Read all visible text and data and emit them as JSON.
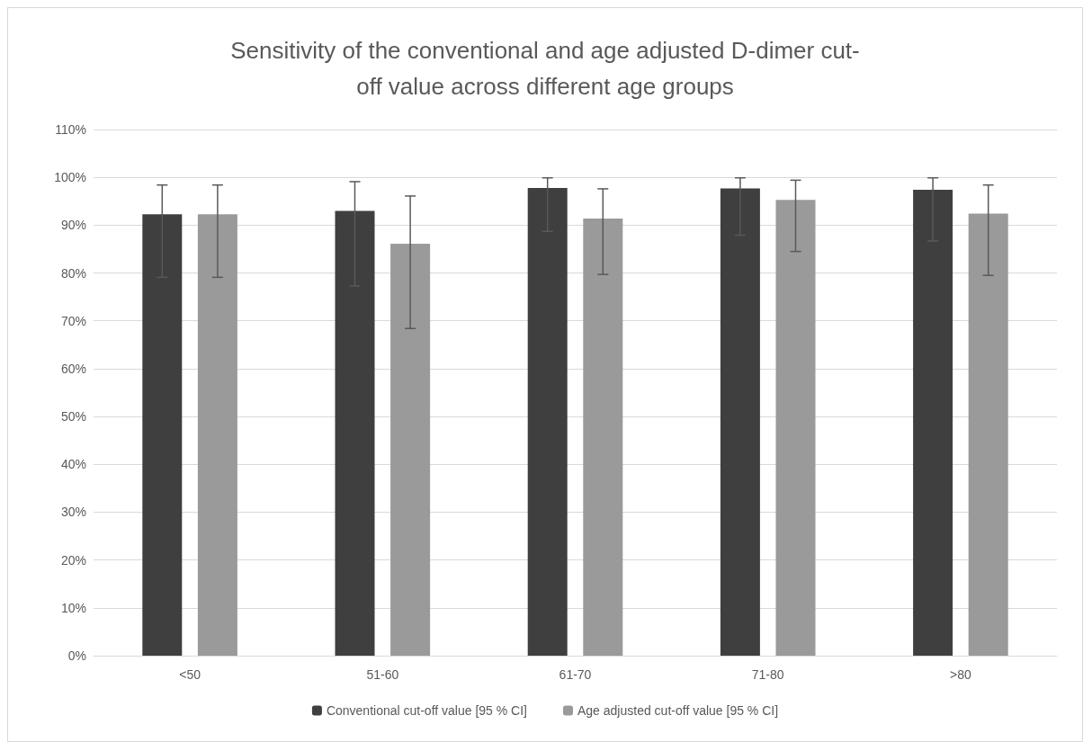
{
  "chart_data": {
    "type": "bar",
    "title": "Sensitivity of the conventional and age adjusted D-dimer cut-\noff value across different age groups",
    "categories": [
      "<50",
      "51-60",
      "61-70",
      "71-80",
      ">80"
    ],
    "series": [
      {
        "name": "Conventional cut-off value [95 % CI]",
        "color": "#3f3f3f",
        "values": [
          92.3,
          93.0,
          97.8,
          97.7,
          97.4
        ],
        "errors": [
          [
            79.1,
            98.4
          ],
          [
            77.3,
            99.1
          ],
          [
            88.7,
            99.9
          ],
          [
            87.9,
            99.9
          ],
          [
            86.7,
            99.9
          ]
        ]
      },
      {
        "name": "Age adjusted cut-off value [95 % CI]",
        "color": "#9a9a9a",
        "values": [
          92.3,
          86.1,
          91.4,
          95.3,
          92.4
        ],
        "errors": [
          [
            79.1,
            98.4
          ],
          [
            68.4,
            96.1
          ],
          [
            79.7,
            97.6
          ],
          [
            84.5,
            99.4
          ],
          [
            79.5,
            98.4
          ]
        ]
      }
    ],
    "ylim": [
      0,
      110
    ],
    "yticks": [
      {
        "value": 0,
        "label": "0%"
      },
      {
        "value": 10,
        "label": "10%"
      },
      {
        "value": 20,
        "label": "20%"
      },
      {
        "value": 30,
        "label": "30%"
      },
      {
        "value": 40,
        "label": "40%"
      },
      {
        "value": 50,
        "label": "50%"
      },
      {
        "value": 60,
        "label": "60%"
      },
      {
        "value": 70,
        "label": "70%"
      },
      {
        "value": 80,
        "label": "80%"
      },
      {
        "value": 90,
        "label": "90%"
      },
      {
        "value": 100,
        "label": "100%"
      },
      {
        "value": 110,
        "label": "110%"
      }
    ],
    "grid": "y",
    "legend": "bottom"
  }
}
